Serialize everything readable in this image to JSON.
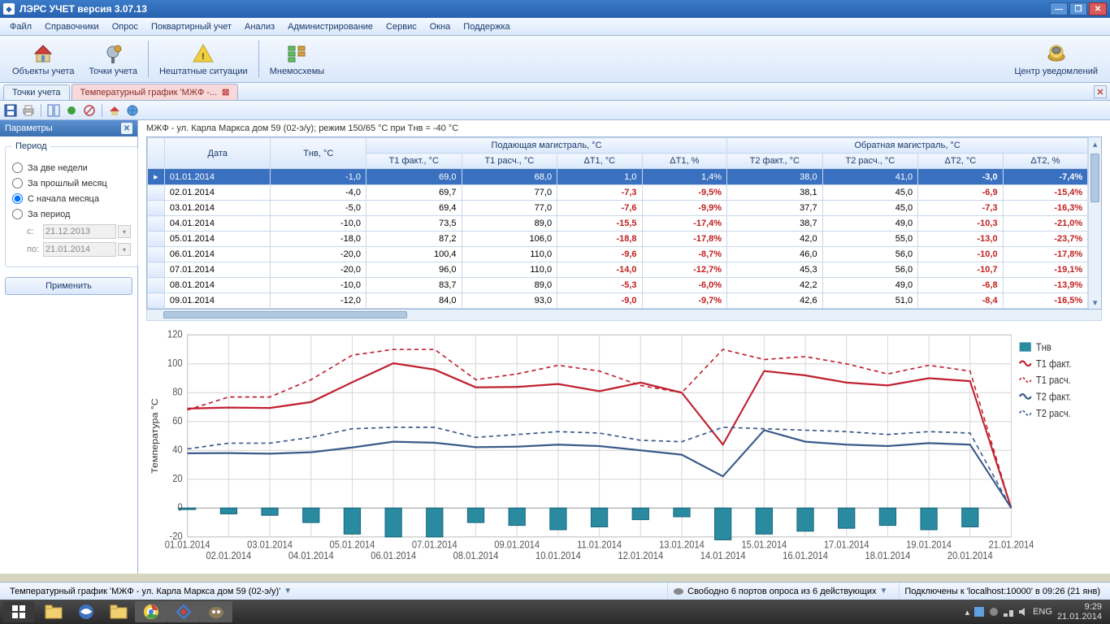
{
  "titlebar": {
    "title": "ЛЭРС УЧЕТ версия 3.07.13"
  },
  "menu": [
    "Файл",
    "Справочники",
    "Опрос",
    "Поквартирный учет",
    "Анализ",
    "Администрирование",
    "Сервис",
    "Окна",
    "Поддержка"
  ],
  "ribbon": {
    "items": [
      {
        "label": "Объекты учета",
        "icon": "house"
      },
      {
        "label": "Точки учета",
        "icon": "valve"
      },
      {
        "label": "Нештатные ситуации",
        "icon": "warn"
      },
      {
        "label": "Мнемосхемы",
        "icon": "scheme"
      }
    ],
    "right": {
      "label": "Центр уведомлений",
      "icon": "bell"
    }
  },
  "tabs": {
    "static": "Точки учета",
    "active": "Температурный график 'МЖФ -..."
  },
  "sidebar": {
    "header": "Параметры",
    "group": "Период",
    "opts": [
      "За две недели",
      "За прошлый месяц",
      "С начала месяца",
      "За период"
    ],
    "selected": 2,
    "from_label": "с:",
    "from": "21.12.2013",
    "to_label": "по:",
    "to": "21.01.2014",
    "apply": "Применить"
  },
  "caption": "МЖФ - ул. Карла Маркса дом 59 (02-э/у); режим 150/65 °C при Тнв = -40 °C",
  "grid": {
    "group1": "Подающая магистраль, °C",
    "group2": "Обратная магистраль, °C",
    "cols": [
      "Дата",
      "Тнв, °C",
      "T1 факт., °C",
      "T1 расч., °C",
      "ΔT1, °C",
      "ΔT1, %",
      "T2 факт., °C",
      "T2 расч., °C",
      "ΔT2, °C",
      "ΔT2, %"
    ],
    "rows": [
      [
        "01.01.2014",
        "-1,0",
        "69,0",
        "68,0",
        "1,0",
        "1,4%",
        "38,0",
        "41,0",
        "-3,0",
        "-7,4%"
      ],
      [
        "02.01.2014",
        "-4,0",
        "69,7",
        "77,0",
        "-7,3",
        "-9,5%",
        "38,1",
        "45,0",
        "-6,9",
        "-15,4%"
      ],
      [
        "03.01.2014",
        "-5,0",
        "69,4",
        "77,0",
        "-7,6",
        "-9,9%",
        "37,7",
        "45,0",
        "-7,3",
        "-16,3%"
      ],
      [
        "04.01.2014",
        "-10,0",
        "73,5",
        "89,0",
        "-15,5",
        "-17,4%",
        "38,7",
        "49,0",
        "-10,3",
        "-21,0%"
      ],
      [
        "05.01.2014",
        "-18,0",
        "87,2",
        "106,0",
        "-18,8",
        "-17,8%",
        "42,0",
        "55,0",
        "-13,0",
        "-23,7%"
      ],
      [
        "06.01.2014",
        "-20,0",
        "100,4",
        "110,0",
        "-9,6",
        "-8,7%",
        "46,0",
        "56,0",
        "-10,0",
        "-17,8%"
      ],
      [
        "07.01.2014",
        "-20,0",
        "96,0",
        "110,0",
        "-14,0",
        "-12,7%",
        "45,3",
        "56,0",
        "-10,7",
        "-19,1%"
      ],
      [
        "08.01.2014",
        "-10,0",
        "83,7",
        "89,0",
        "-5,3",
        "-6,0%",
        "42,2",
        "49,0",
        "-6,8",
        "-13,9%"
      ],
      [
        "09.01.2014",
        "-12,0",
        "84,0",
        "93,0",
        "-9,0",
        "-9,7%",
        "42,6",
        "51,0",
        "-8,4",
        "-16,5%"
      ]
    ],
    "neg_cols": [
      4,
      5,
      8,
      9
    ]
  },
  "chart": {
    "ylabel": "Температура °C",
    "ymin": -20,
    "ymax": 120,
    "ystep": 20,
    "xlabels": [
      "01.01.2014",
      "02.01.2014",
      "03.01.2014",
      "04.01.2014",
      "05.01.2014",
      "06.01.2014",
      "07.01.2014",
      "08.01.2014",
      "09.01.2014",
      "10.01.2014",
      "11.01.2014",
      "12.01.2014",
      "13.01.2014",
      "14.01.2014",
      "15.01.2014",
      "16.01.2014",
      "17.01.2014",
      "18.01.2014",
      "19.01.2014",
      "20.01.2014",
      "21.01.2014"
    ],
    "legend": [
      "Тнв",
      "T1 факт.",
      "T1 расч.",
      "T2 факт.",
      "T2 расч."
    ],
    "colors": {
      "tnv": "#2a8aa0",
      "t1f": "#c02030",
      "t1r": "#c02030",
      "t2f": "#3a5a8a",
      "t2r": "#3a5a8a",
      "grid": "#d8d8d8",
      "axis": "#888888",
      "bg": "#ffffff"
    },
    "series": {
      "tnv": [
        -1,
        -4,
        -5,
        -10,
        -18,
        -20,
        -20,
        -10,
        -12,
        -15,
        -13,
        -8,
        -6,
        -22,
        -18,
        -16,
        -14,
        -12,
        -15,
        -13,
        0
      ],
      "t1f": [
        69,
        69.7,
        69.4,
        73.5,
        87.2,
        100.4,
        96,
        83.7,
        84,
        86,
        81,
        87,
        80,
        44,
        95,
        92,
        87,
        85,
        90,
        88,
        0
      ],
      "t1r": [
        68,
        77,
        77,
        89,
        106,
        110,
        110,
        89,
        93,
        99,
        95,
        85,
        80,
        110,
        103,
        105,
        100,
        93,
        99,
        95,
        0
      ],
      "t2f": [
        38,
        38.1,
        37.7,
        38.7,
        42,
        46,
        45.3,
        42.2,
        42.6,
        44,
        43,
        40,
        37,
        22,
        54,
        46,
        44,
        43,
        45,
        44,
        0
      ],
      "t2r": [
        41,
        45,
        45,
        49,
        55,
        56,
        56,
        49,
        51,
        53,
        52,
        47,
        46,
        56,
        55,
        54,
        53,
        51,
        53,
        52,
        0
      ]
    }
  },
  "status": {
    "left": "Температурный график 'МЖФ - ул. Карла Маркса дом 59 (02-э/у)'",
    "ports": "Свободно 6 портов опроса из 6 действующих",
    "conn": "Подключены к 'localhost:10000' в 09:26 (21 янв)"
  },
  "taskbar": {
    "lang": "ENG",
    "time": "9:29",
    "date": "21.01.2014"
  }
}
